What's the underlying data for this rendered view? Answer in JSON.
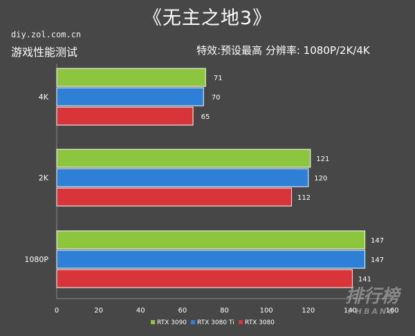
{
  "header": {
    "title": "《无主之地3》",
    "site": "diy.zol.com.cn",
    "subtitle_left": "游戏性能测试",
    "subtitle_right": "特效:预设最高  分辨率: 1080P/2K/4K"
  },
  "watermark": {
    "main": "排行榜",
    "sub": "PHBANG"
  },
  "chart_data": {
    "type": "bar",
    "orientation": "horizontal",
    "categories": [
      "4K",
      "2K",
      "1080P"
    ],
    "series": [
      {
        "name": "RTX 3090",
        "values": [
          71,
          121,
          147
        ],
        "color": "#8cc63f"
      },
      {
        "name": "RTX 3080 Ti",
        "values": [
          70,
          120,
          147
        ],
        "color": "#2e7fd6"
      },
      {
        "name": "RTX 3080",
        "values": [
          65,
          112,
          141
        ],
        "color": "#d9343a"
      }
    ],
    "xlim": [
      0,
      160
    ],
    "xticks": [
      0,
      20,
      40,
      60,
      80,
      100,
      120,
      140,
      160
    ],
    "grid": false,
    "legend": "bottom"
  }
}
